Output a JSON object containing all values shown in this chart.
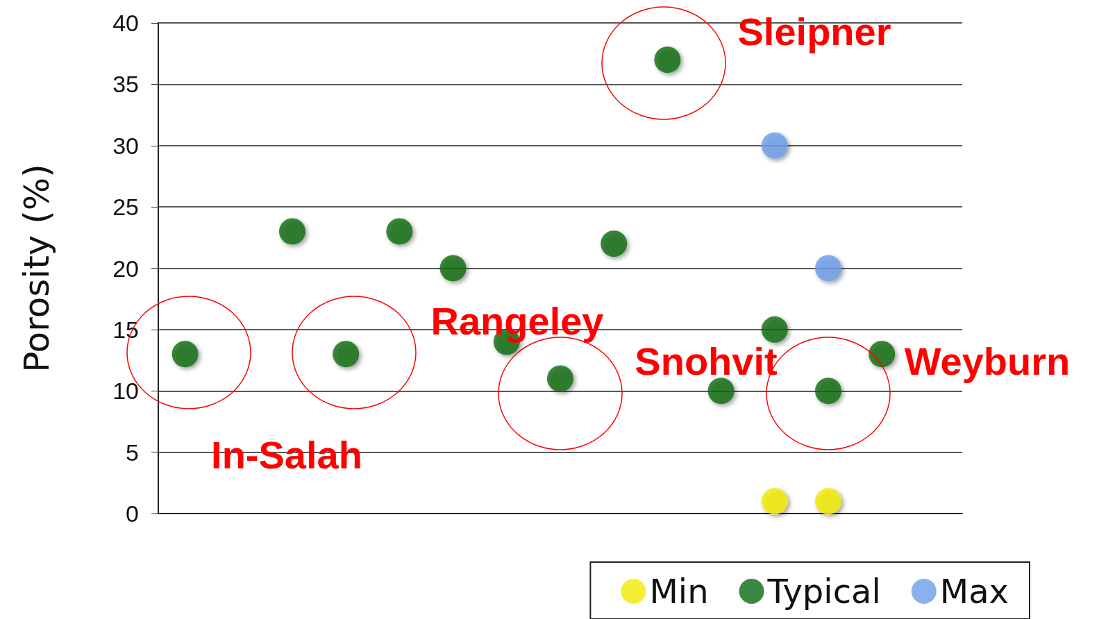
{
  "chart_data": {
    "type": "scatter",
    "ylabel": "Porosity (%)",
    "categories": [
      null,
      null,
      null,
      null,
      null,
      null,
      null,
      null,
      null,
      null,
      null,
      null,
      null,
      null,
      null
    ],
    "series": [
      {
        "name": "Min",
        "color": "#f2ea00",
        "values": [
          null,
          null,
          null,
          null,
          null,
          null,
          null,
          null,
          null,
          null,
          null,
          1,
          1,
          null,
          null
        ]
      },
      {
        "name": "Typical",
        "color": "#0a6a12",
        "values": [
          13,
          null,
          23,
          13,
          23,
          20,
          14,
          11,
          22,
          37,
          10,
          15,
          10,
          13,
          null
        ]
      },
      {
        "name": "Max",
        "color": "#6b9ee8",
        "values": [
          null,
          null,
          null,
          null,
          null,
          null,
          null,
          null,
          null,
          null,
          null,
          30,
          20,
          null,
          null
        ]
      }
    ],
    "ylim": [
      0,
      40
    ],
    "yticks": [
      0,
      5,
      10,
      15,
      20,
      25,
      30,
      35,
      40
    ],
    "grid": "y",
    "legend": "bottom right",
    "marker": "circle",
    "annotations": [
      "Sleipner",
      "Rangeley",
      "Snohvit",
      "Weyburn",
      "In-Salah"
    ]
  }
}
